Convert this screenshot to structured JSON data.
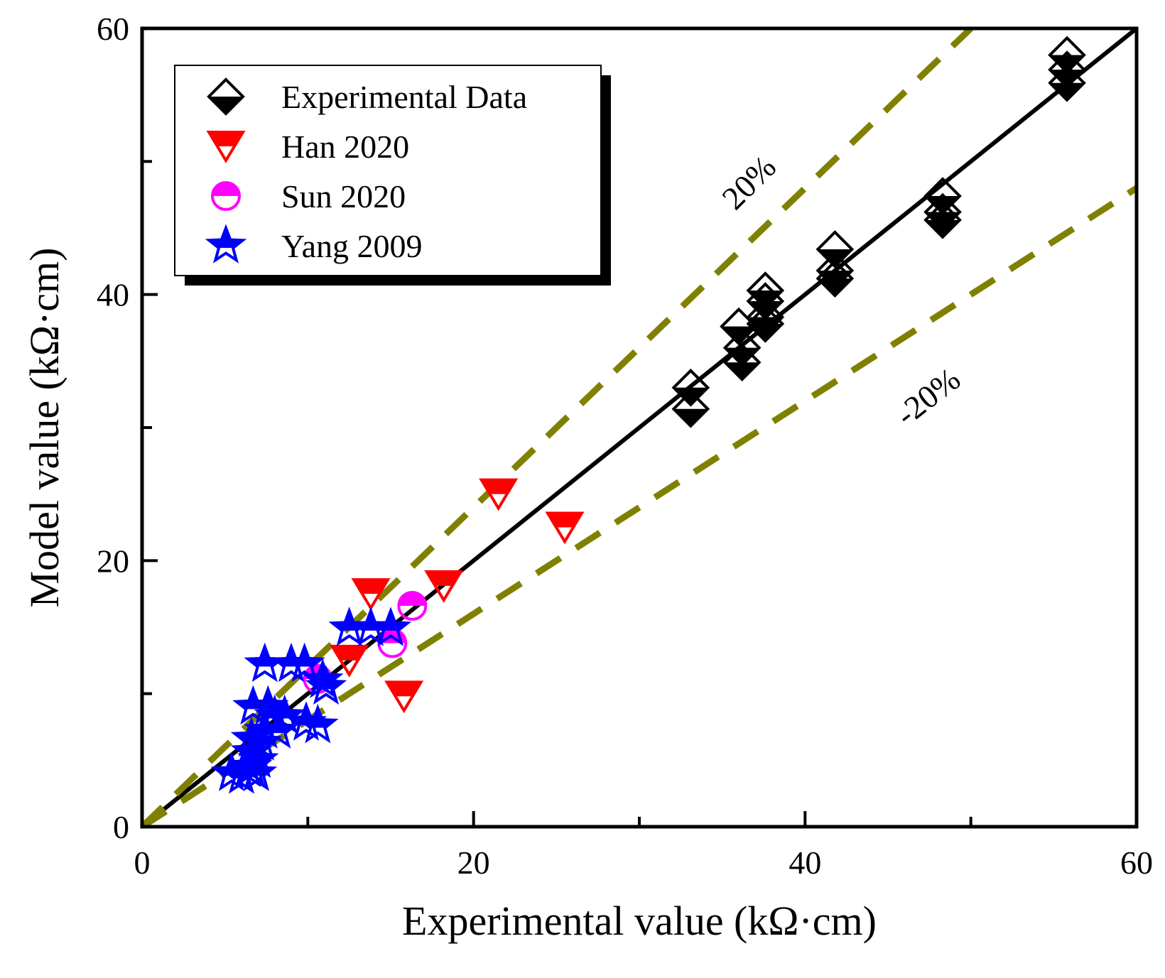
{
  "chart_data": {
    "type": "scatter",
    "title": "",
    "xlabel": "Experimental value (kΩ·cm)",
    "ylabel": "Model value (kΩ·cm)",
    "xlim": [
      0,
      60
    ],
    "ylim": [
      0,
      60
    ],
    "xticks": [
      0,
      20,
      40,
      60
    ],
    "yticks": [
      0,
      20,
      40,
      60
    ],
    "grid": false,
    "legend_position": "top-left",
    "reference_lines": [
      {
        "name": "1:1 line",
        "slope": 1.0,
        "style": "solid",
        "color": "#000000"
      },
      {
        "name": "+20% line",
        "slope": 1.2,
        "style": "dashed",
        "color": "#808000",
        "label": "20%"
      },
      {
        "name": "-20% line",
        "slope": 0.8,
        "style": "dashed",
        "color": "#808000",
        "label": "-20%"
      }
    ],
    "series": [
      {
        "name": "Experimental Data",
        "marker": "half-diamond",
        "color": "#000000",
        "points": [
          [
            33.1,
            33.0
          ],
          [
            33.1,
            31.4
          ],
          [
            36.0,
            37.6
          ],
          [
            36.2,
            36.0
          ],
          [
            36.2,
            34.9
          ],
          [
            37.6,
            40.3
          ],
          [
            37.6,
            39.5
          ],
          [
            37.6,
            38.3
          ],
          [
            37.6,
            37.8
          ],
          [
            41.8,
            43.4
          ],
          [
            41.8,
            41.8
          ],
          [
            41.8,
            41.2
          ],
          [
            48.3,
            47.4
          ],
          [
            48.3,
            46.2
          ],
          [
            48.3,
            45.6
          ],
          [
            55.8,
            58.0
          ],
          [
            55.8,
            56.9
          ],
          [
            55.8,
            55.9
          ]
        ]
      },
      {
        "name": "Han 2020",
        "marker": "triangle-down-half",
        "color": "#ff0000",
        "points": [
          [
            21.5,
            25.0
          ],
          [
            25.5,
            22.5
          ],
          [
            18.2,
            18.1
          ],
          [
            13.8,
            17.5
          ],
          [
            12.5,
            12.5
          ],
          [
            15.8,
            9.8
          ]
        ]
      },
      {
        "name": "Sun 2020",
        "marker": "circle-half",
        "color": "#ff00ff",
        "points": [
          [
            16.3,
            16.6
          ],
          [
            15.1,
            13.8
          ],
          [
            10.6,
            11.1
          ]
        ]
      },
      {
        "name": "Yang 2009",
        "marker": "star",
        "color": "#0000ff",
        "points": [
          [
            7.4,
            12.2
          ],
          [
            9.0,
            12.2
          ],
          [
            9.8,
            12.2
          ],
          [
            12.5,
            14.9
          ],
          [
            13.8,
            14.9
          ],
          [
            15.0,
            14.9
          ],
          [
            10.9,
            11.0
          ],
          [
            11.1,
            10.5
          ],
          [
            6.7,
            9.0
          ],
          [
            7.6,
            9.0
          ],
          [
            8.0,
            8.3
          ],
          [
            8.6,
            8.3
          ],
          [
            9.9,
            7.8
          ],
          [
            10.6,
            7.6
          ],
          [
            7.4,
            7.2
          ],
          [
            8.2,
            7.2
          ],
          [
            6.6,
            6.6
          ],
          [
            7.2,
            6.3
          ],
          [
            6.6,
            5.6
          ],
          [
            7.0,
            5.0
          ],
          [
            6.6,
            4.5
          ],
          [
            5.4,
            4.0
          ],
          [
            6.0,
            3.8
          ],
          [
            6.4,
            4.3
          ],
          [
            6.9,
            4.0
          ]
        ]
      }
    ],
    "annotations": [
      {
        "text": "20%",
        "near_line": "+20% line"
      },
      {
        "text": "-20%",
        "near_line": "-20% line"
      }
    ]
  }
}
